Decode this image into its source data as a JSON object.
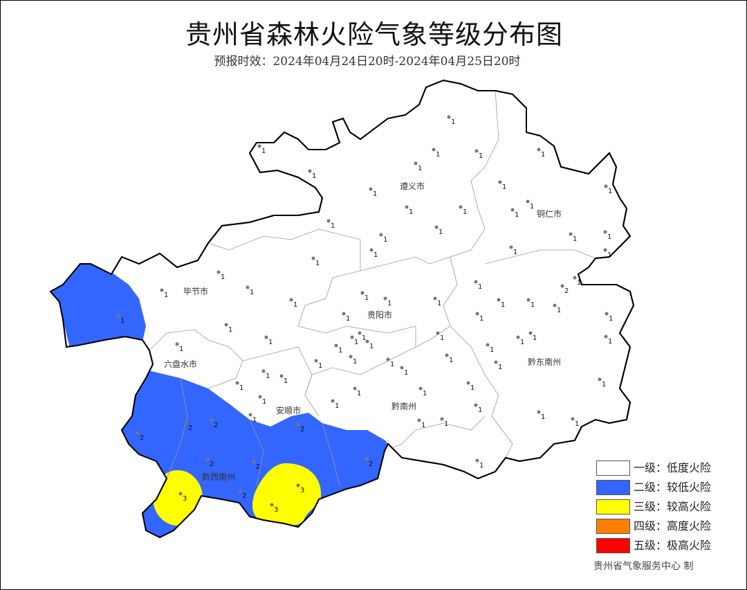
{
  "title": "贵州省森林火险气象等级分布图",
  "subtitle": "预报时效：2024年04月24日20时-2024年04月25日20时",
  "cities": [
    "遵义市",
    "铜仁市",
    "毕节市",
    "贵阳市",
    "黔东南州",
    "六盘水市",
    "安顺市",
    "黔南州",
    "黔西南州"
  ],
  "stations": [
    "1",
    "1",
    "1",
    "1",
    "1",
    "1",
    "1",
    "1",
    "1",
    "1",
    "1",
    "1",
    "1",
    "1",
    "1",
    "1",
    "1",
    "1",
    "1",
    "1",
    "1",
    "1",
    "1",
    "1",
    "1",
    "1",
    "1",
    "1",
    "1",
    "1",
    "1",
    "1",
    "1",
    "1",
    "1",
    "2",
    "1",
    "1",
    "1",
    "1",
    "1",
    "1",
    "1",
    "1",
    "1",
    "1",
    "1",
    "1",
    "1",
    "1",
    "1",
    "1",
    "1",
    "1",
    "1",
    "1",
    "1",
    "1",
    "1",
    "1",
    "1",
    "1",
    "1",
    "1",
    "1",
    "1",
    "1",
    "1",
    "1",
    "1",
    "1",
    "1",
    "1",
    "2",
    "2",
    "2",
    "2",
    "2",
    "2",
    "2",
    "1",
    "3",
    "2",
    "3",
    "3"
  ],
  "legend": [
    {
      "label": "一级：低度火险",
      "color": "#ffffff"
    },
    {
      "label": "二级：较低火险",
      "color": "#3366ff"
    },
    {
      "label": "三级：较高火险",
      "color": "#ffff00"
    },
    {
      "label": "四级：高度火险",
      "color": "#ff8000"
    },
    {
      "label": "五级：极高火险",
      "color": "#ff0000"
    }
  ],
  "credit": "贵州省气象服务中心  制"
}
